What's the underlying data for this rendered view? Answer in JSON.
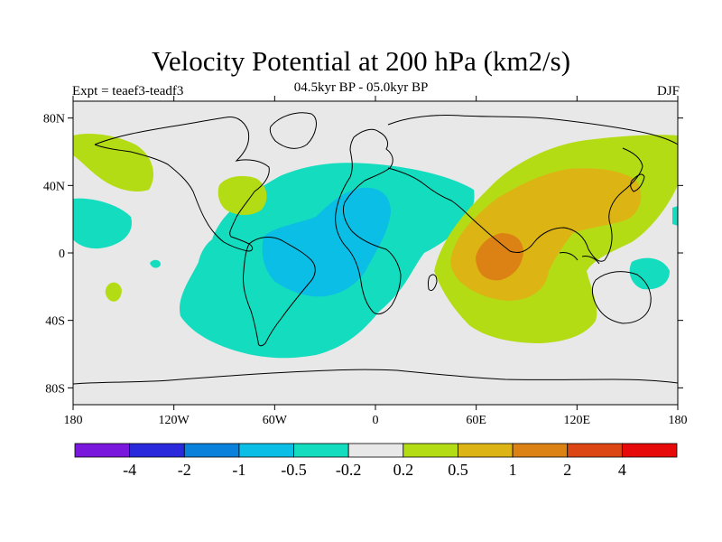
{
  "title": "Velocity Potential at 200 hPa (km2/s)",
  "subtitle": "04.5kyr BP - 05.0kyr BP",
  "left_label": "Expt = teaef3-teadf3",
  "right_label": "DJF",
  "axes": {
    "lat_ticks": [
      "80N",
      "40N",
      "0",
      "40S",
      "80S"
    ],
    "lon_ticks": [
      "180",
      "120W",
      "60W",
      "0",
      "60E",
      "120E",
      "180"
    ]
  },
  "colorbar": {
    "labels": [
      "-4",
      "-2",
      "-1",
      "-0.5",
      "-0.2",
      "0.2",
      "0.5",
      "1",
      "2",
      "4"
    ],
    "colors": [
      "#7A17DC",
      "#2A2ADC",
      "#0A82DC",
      "#0BBEE6",
      "#14DCBE",
      "#E8E8E8",
      "#B4DC14",
      "#DCB414",
      "#DC8214",
      "#DC4614",
      "#E60A0A"
    ]
  },
  "map": {
    "background_color": "#E8E8E8",
    "coastline_color": "#000000"
  }
}
